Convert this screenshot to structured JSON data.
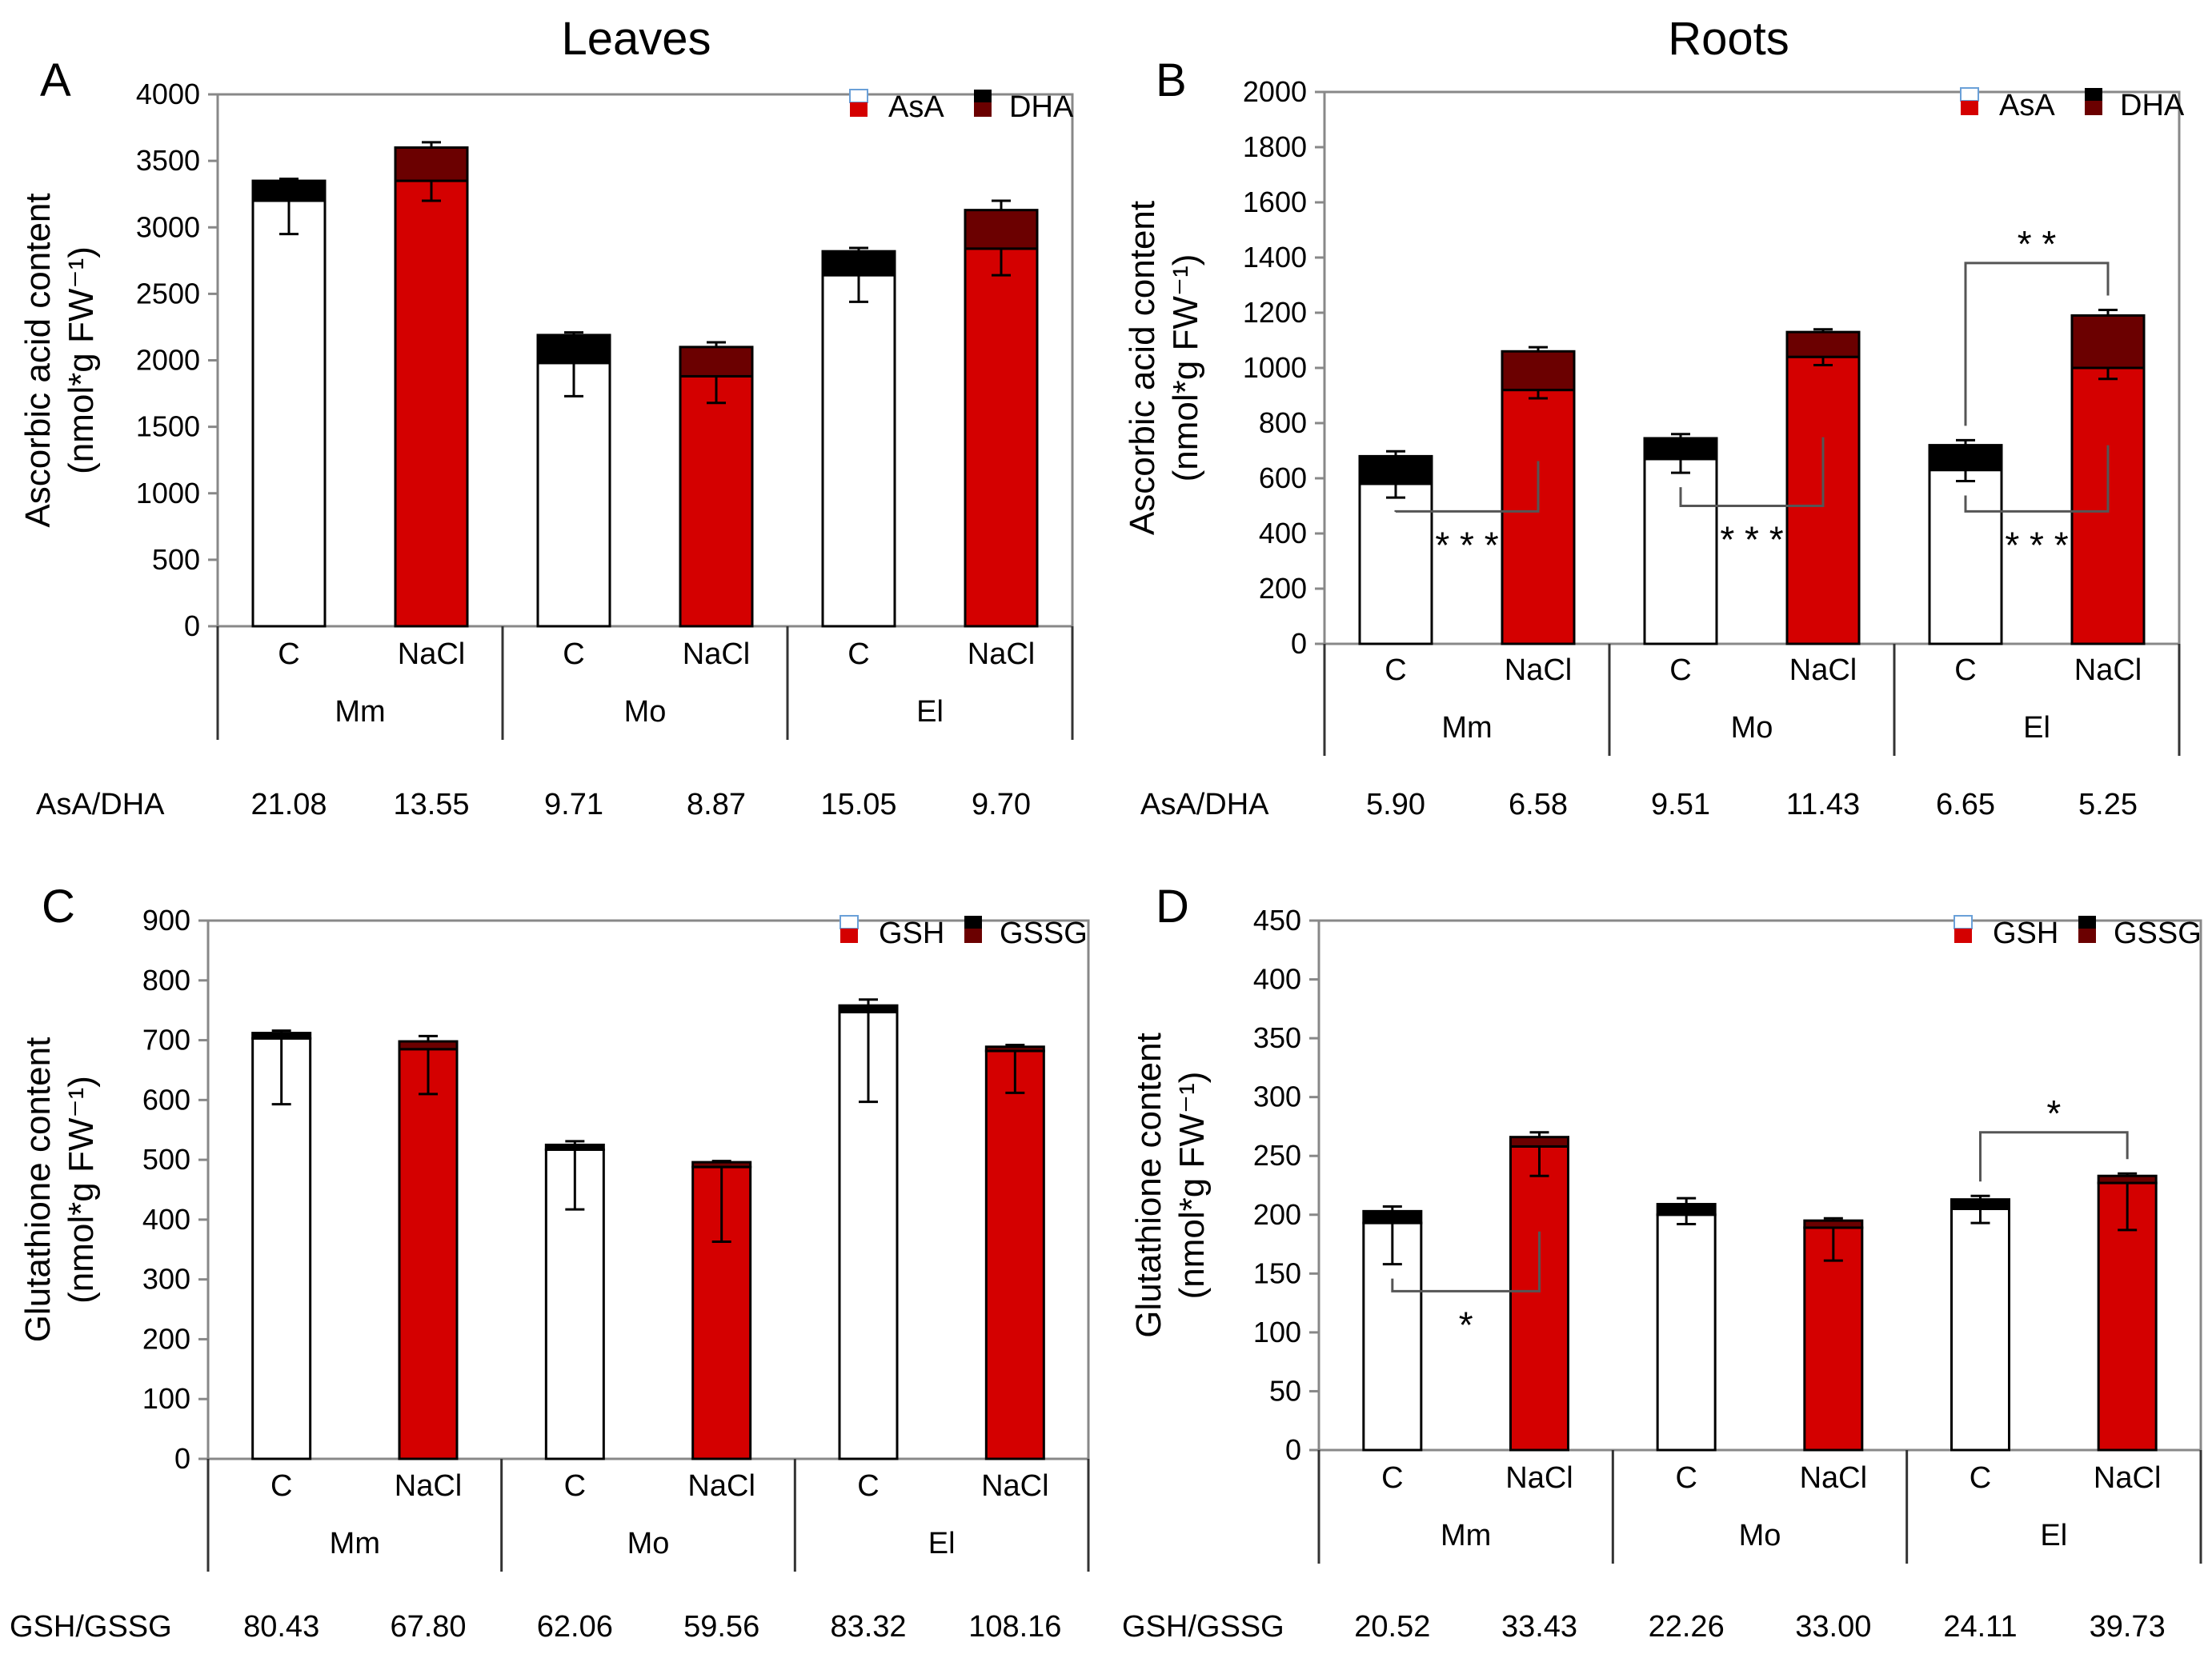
{
  "figure": {
    "column_titles": [
      "Leaves",
      "Roots"
    ]
  },
  "chart_data": [
    {
      "panel": "A",
      "type": "bar",
      "stacked": true,
      "tissue": "Leaves",
      "ylabel_line1": "Ascorbic acid content",
      "ylabel_line2": "(nmol*g FW⁻¹)",
      "ylim": [
        0,
        4000
      ],
      "yticks": [
        0,
        500,
        1000,
        1500,
        2000,
        2500,
        3000,
        3500,
        4000
      ],
      "treatments": [
        "C",
        "NaCl",
        "C",
        "NaCl",
        "C",
        "NaCl"
      ],
      "groups": [
        "Mm",
        "Mo",
        "El"
      ],
      "legend": [
        "AsA",
        "DHA"
      ],
      "series": [
        {
          "name": "AsA",
          "values": [
            3200,
            3350,
            1980,
            1880,
            2640,
            2840
          ],
          "errors": [
            250,
            150,
            250,
            200,
            200,
            200
          ]
        },
        {
          "name": "DHA",
          "values": [
            150,
            250,
            210,
            220,
            180,
            290
          ],
          "errors": [
            15,
            40,
            20,
            35,
            25,
            70
          ]
        }
      ],
      "ratio_label": "AsA/DHA",
      "ratios": [
        "21.08",
        "13.55",
        "9.71",
        "8.87",
        "15.05",
        "9.70"
      ],
      "significance": []
    },
    {
      "panel": "B",
      "type": "bar",
      "stacked": true,
      "tissue": "Roots",
      "ylabel_line1": "Ascorbic acid content",
      "ylabel_line2": "(nmol*g FW⁻¹)",
      "ylim": [
        0,
        2000
      ],
      "yticks": [
        0,
        200,
        400,
        600,
        800,
        1000,
        1200,
        1400,
        1600,
        1800,
        2000
      ],
      "treatments": [
        "C",
        "NaCl",
        "C",
        "NaCl",
        "C",
        "NaCl"
      ],
      "groups": [
        "Mm",
        "Mo",
        "El"
      ],
      "legend": [
        "AsA",
        "DHA"
      ],
      "series": [
        {
          "name": "AsA",
          "values": [
            580,
            920,
            670,
            1040,
            630,
            1000
          ],
          "errors": [
            50,
            30,
            50,
            30,
            40,
            40
          ]
        },
        {
          "name": "DHA",
          "values": [
            100,
            140,
            75,
            90,
            90,
            190
          ],
          "errors": [
            18,
            15,
            15,
            10,
            18,
            20
          ]
        }
      ],
      "ratio_label": "AsA/DHA",
      "ratios": [
        "5.90",
        "6.58",
        "9.51",
        "11.43",
        "6.65",
        "5.25"
      ],
      "significance": [
        {
          "from": 0,
          "to": 1,
          "level": 480,
          "position": "below",
          "label": "* * *"
        },
        {
          "from": 2,
          "to": 3,
          "level": 500,
          "position": "below",
          "label": "* * *"
        },
        {
          "from": 4,
          "to": 5,
          "level": 480,
          "position": "below",
          "label": "* * *"
        },
        {
          "from": 4,
          "to": 5,
          "level": 1380,
          "position": "above",
          "label": "* *"
        }
      ]
    },
    {
      "panel": "C",
      "type": "bar",
      "stacked": true,
      "tissue": "Leaves",
      "ylabel_line1": "Glutathione content",
      "ylabel_line2": "(nmol*g FW⁻¹)",
      "ylim": [
        0,
        900
      ],
      "yticks": [
        0,
        100,
        200,
        300,
        400,
        500,
        600,
        700,
        800,
        900
      ],
      "treatments": [
        "C",
        "NaCl",
        "C",
        "NaCl",
        "C",
        "NaCl"
      ],
      "groups": [
        "Mm",
        "Mo",
        "El"
      ],
      "legend": [
        "GSH",
        "GSSG"
      ],
      "series": [
        {
          "name": "GSH",
          "values": [
            703,
            685,
            517,
            488,
            747,
            682
          ],
          "errors": [
            110,
            75,
            100,
            125,
            150,
            70
          ]
        },
        {
          "name": "GSSG",
          "values": [
            9,
            13,
            8,
            8,
            11,
            7
          ],
          "errors": [
            4,
            9,
            6,
            2,
            10,
            3
          ]
        }
      ],
      "ratio_label": "GSH/GSSG",
      "ratios": [
        "80.43",
        "67.80",
        "62.06",
        "59.56",
        "83.32",
        "108.16"
      ],
      "significance": []
    },
    {
      "panel": "D",
      "type": "bar",
      "stacked": true,
      "tissue": "Roots",
      "ylabel_line1": "Glutathione content",
      "ylabel_line2": "(nmol*g FW⁻¹)",
      "ylim": [
        0,
        450
      ],
      "yticks": [
        0,
        50,
        100,
        150,
        200,
        250,
        300,
        350,
        400,
        450
      ],
      "treatments": [
        "C",
        "NaCl",
        "C",
        "NaCl",
        "C",
        "NaCl"
      ],
      "groups": [
        "Mm",
        "Mo",
        "El"
      ],
      "legend": [
        "GSH",
        "GSSG"
      ],
      "series": [
        {
          "name": "GSH",
          "values": [
            193,
            258,
            200,
            189,
            205,
            227
          ],
          "errors": [
            35,
            25,
            8,
            28,
            12,
            40
          ]
        },
        {
          "name": "GSSG",
          "values": [
            10,
            8,
            9,
            6,
            8,
            6
          ],
          "errors": [
            4,
            4,
            5,
            2,
            3,
            2
          ]
        }
      ],
      "ratio_label": "GSH/GSSG",
      "ratios": [
        "20.52",
        "33.43",
        "22.26",
        "33.00",
        "24.11",
        "39.73"
      ],
      "significance": [
        {
          "from": 0,
          "to": 1,
          "level": 135,
          "position": "below",
          "label": "*"
        },
        {
          "from": 4,
          "to": 5,
          "level": 270,
          "position": "above",
          "label": "*"
        }
      ]
    }
  ]
}
